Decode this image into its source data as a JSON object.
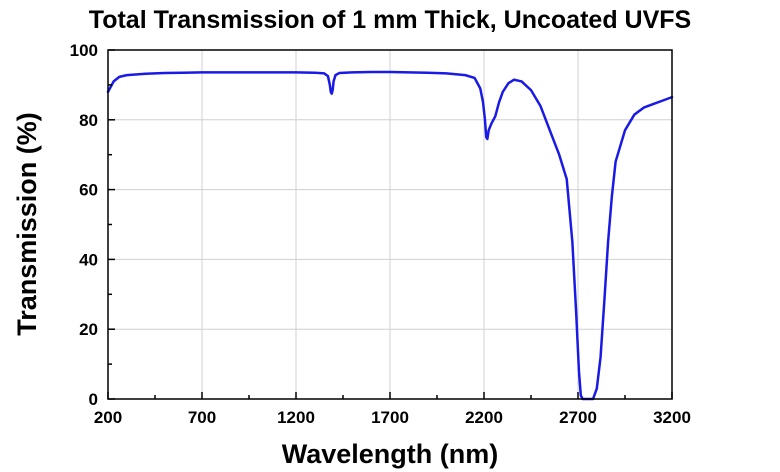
{
  "chart_data": {
    "type": "line",
    "title": "Total Transmission of 1 mm Thick, Uncoated UVFS",
    "xlabel": "Wavelength (nm)",
    "ylabel": "Transmission (%)",
    "xlim": [
      200,
      3200
    ],
    "ylim": [
      0,
      100
    ],
    "xticks": [
      "200",
      "700",
      "1200",
      "1700",
      "2200",
      "2700",
      "3200"
    ],
    "yticks": [
      "0",
      "20",
      "40",
      "60",
      "80",
      "100"
    ],
    "grid": true,
    "line_color": "#1a1ae6",
    "series": [
      {
        "x": [
          200,
          215,
          230,
          260,
          300,
          400,
          500,
          600,
          700,
          800,
          900,
          1000,
          1100,
          1200,
          1300,
          1350,
          1370,
          1380,
          1385,
          1390,
          1395,
          1400,
          1410,
          1430,
          1500,
          1600,
          1700,
          1800,
          1900,
          2000,
          2100,
          2150,
          2180,
          2195,
          2205,
          2212,
          2218,
          2225,
          2240,
          2260,
          2280,
          2300,
          2330,
          2360,
          2400,
          2450,
          2500,
          2550,
          2600,
          2640,
          2670,
          2690,
          2705,
          2715,
          2725,
          2740,
          2760,
          2780,
          2800,
          2820,
          2840,
          2860,
          2880,
          2900,
          2950,
          3000,
          3050,
          3100,
          3150,
          3200
        ],
        "y": [
          88,
          89.5,
          91,
          92.3,
          92.8,
          93.2,
          93.4,
          93.5,
          93.6,
          93.6,
          93.6,
          93.6,
          93.6,
          93.6,
          93.5,
          93.3,
          92.5,
          90,
          88,
          87.5,
          88.5,
          91,
          92.8,
          93.4,
          93.6,
          93.7,
          93.7,
          93.6,
          93.5,
          93.3,
          92.8,
          92,
          89,
          85,
          80,
          75,
          74.5,
          77,
          79,
          81,
          85,
          88,
          90.5,
          91.5,
          91,
          88.5,
          84,
          77,
          70,
          63,
          45,
          25,
          8,
          1,
          0,
          0,
          0,
          0,
          3,
          12,
          28,
          45,
          58,
          68,
          77,
          81.5,
          83.5,
          84.5,
          85.5,
          86.5
        ]
      }
    ]
  }
}
